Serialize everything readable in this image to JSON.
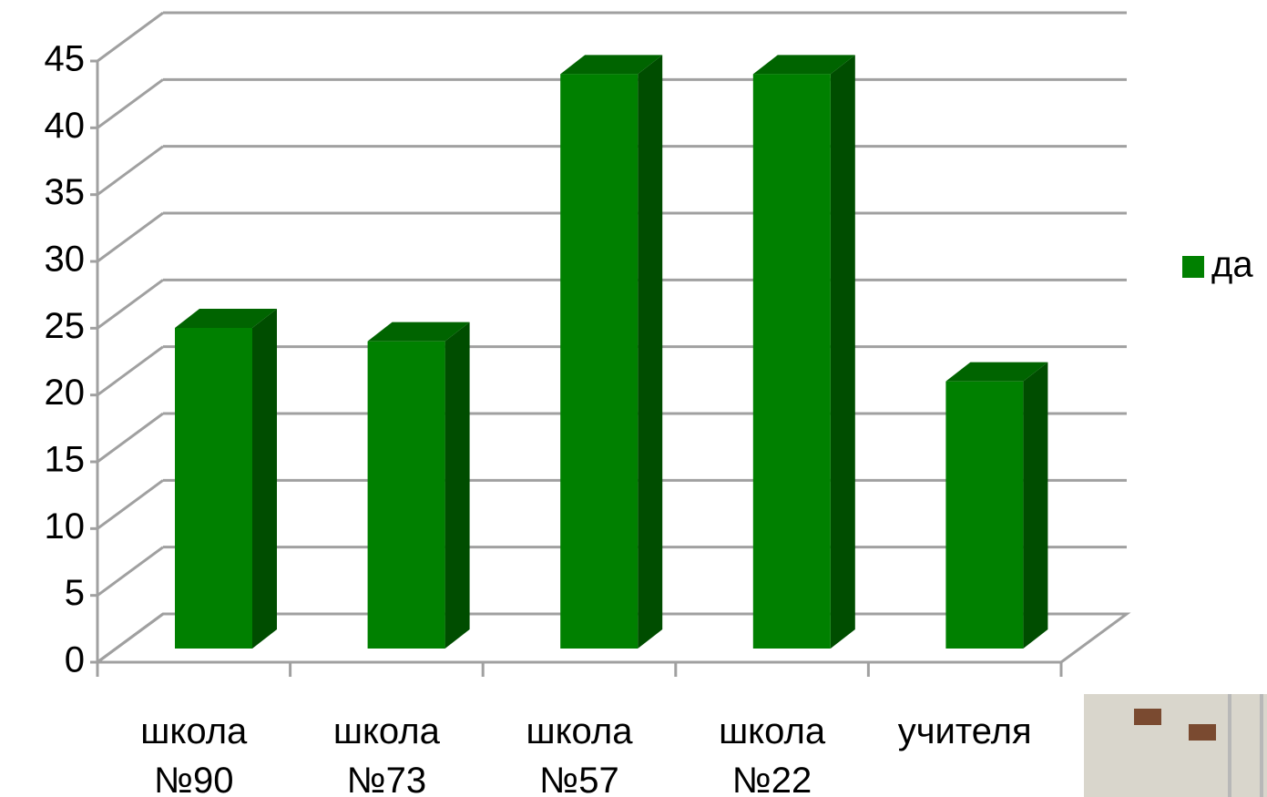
{
  "chart_data": {
    "type": "bar3d",
    "categories": [
      "школа №90",
      "школа №73",
      "школа №57",
      "школа №22",
      "учителя"
    ],
    "series": [
      {
        "name": "да",
        "color": "#008000",
        "values": [
          24,
          23,
          43,
          43,
          20
        ]
      }
    ],
    "ylim": [
      0,
      45
    ],
    "yticks": [
      0,
      5,
      10,
      15,
      20,
      25,
      30,
      35,
      40,
      45
    ],
    "grid": true,
    "legend": "right"
  }
}
